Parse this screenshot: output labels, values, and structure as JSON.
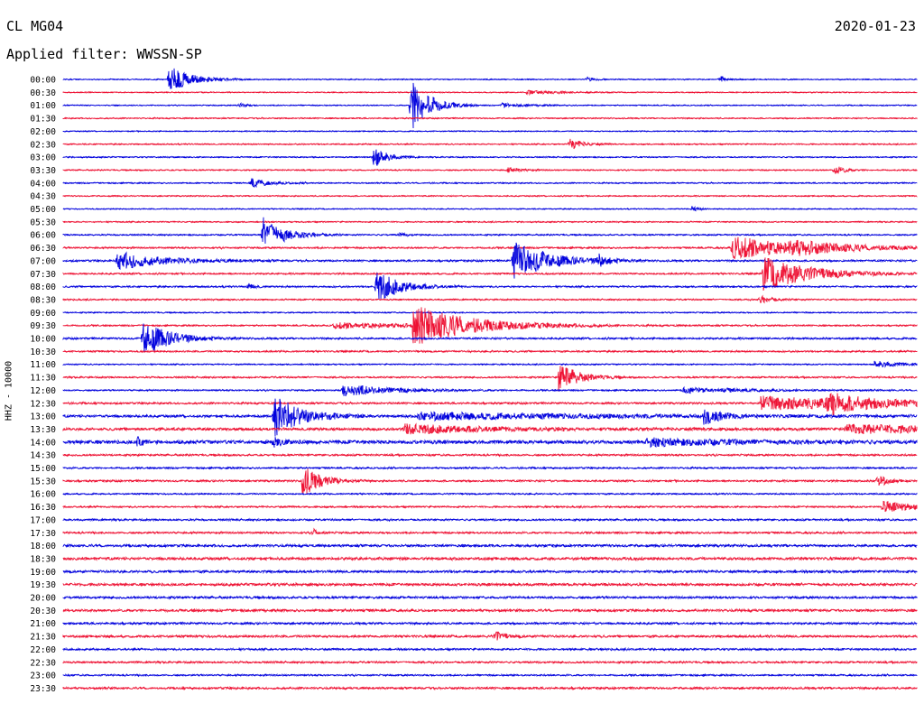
{
  "header": {
    "station": "CL MG04",
    "date": "2020-01-23",
    "filter_label": "Applied filter: WWSSN-SP"
  },
  "colors": {
    "even_row": "#0000dd",
    "odd_row": "#ee1133",
    "text": "#000000"
  },
  "chart_data": {
    "type": "line",
    "title": "CL MG04",
    "subtitle": "Applied filter: WWSSN-SP",
    "ylabel": "HHZ - 10000",
    "xlabel": "",
    "grid": false,
    "row_labels": [
      "00:00",
      "00:30",
      "01:00",
      "01:30",
      "02:00",
      "02:30",
      "03:00",
      "03:30",
      "04:00",
      "04:30",
      "05:00",
      "05:30",
      "06:00",
      "06:30",
      "07:00",
      "07:30",
      "08:00",
      "08:30",
      "09:00",
      "09:30",
      "10:00",
      "10:30",
      "11:00",
      "11:30",
      "12:00",
      "12:30",
      "13:00",
      "13:30",
      "14:00",
      "14:30",
      "15:00",
      "15:30",
      "16:00",
      "16:30",
      "17:00",
      "17:30",
      "18:00",
      "18:30",
      "19:00",
      "19:30",
      "20:00",
      "20:30",
      "21:00",
      "21:30",
      "22:00",
      "22:30",
      "23:00",
      "23:30"
    ],
    "row_colors": [
      "even_row",
      "odd_row"
    ],
    "row_minutes": 30,
    "noise": [
      0.5,
      0.5,
      0.5,
      0.6,
      0.5,
      0.6,
      0.6,
      0.6,
      0.6,
      0.6,
      0.5,
      0.6,
      0.7,
      0.8,
      0.9,
      0.8,
      0.8,
      0.7,
      0.6,
      0.7,
      0.9,
      0.8,
      0.6,
      0.8,
      0.7,
      0.9,
      1.3,
      1.4,
      1.8,
      0.9,
      0.8,
      0.9,
      0.7,
      0.8,
      0.9,
      0.9,
      1.2,
      1.4,
      1.2,
      1.3,
      1.1,
      1.2,
      1.0,
      1.1,
      0.9,
      0.9,
      0.8,
      1.0
    ],
    "events": [
      {
        "row": 0,
        "t": 3.7,
        "amp": 16,
        "dur": 0.7
      },
      {
        "row": 0,
        "t": 18.4,
        "amp": 3,
        "dur": 0.2
      },
      {
        "row": 0,
        "t": 23.1,
        "amp": 4,
        "dur": 0.2
      },
      {
        "row": 1,
        "t": 16.3,
        "amp": 2,
        "dur": 1.0
      },
      {
        "row": 2,
        "t": 12.2,
        "amp": 32,
        "dur": 0.6
      },
      {
        "row": 2,
        "t": 15.4,
        "amp": 2,
        "dur": 0.8
      },
      {
        "row": 2,
        "t": 6.2,
        "amp": 3,
        "dur": 0.2
      },
      {
        "row": 5,
        "t": 17.8,
        "amp": 7,
        "dur": 0.4
      },
      {
        "row": 6,
        "t": 10.9,
        "amp": 14,
        "dur": 0.4
      },
      {
        "row": 7,
        "t": 15.6,
        "amp": 3,
        "dur": 0.4
      },
      {
        "row": 7,
        "t": 27.1,
        "amp": 6,
        "dur": 0.3
      },
      {
        "row": 8,
        "t": 6.6,
        "amp": 5,
        "dur": 0.6
      },
      {
        "row": 10,
        "t": 22.1,
        "amp": 3,
        "dur": 0.2
      },
      {
        "row": 12,
        "t": 7.0,
        "amp": 20,
        "dur": 0.7
      },
      {
        "row": 12,
        "t": 11.8,
        "amp": 3,
        "dur": 0.2
      },
      {
        "row": 13,
        "t": 23.5,
        "amp": 13,
        "dur": 2.2
      },
      {
        "row": 13,
        "t": 25.5,
        "amp": 5,
        "dur": 1.8
      },
      {
        "row": 14,
        "t": 1.9,
        "amp": 10,
        "dur": 1.5
      },
      {
        "row": 14,
        "t": 15.8,
        "amp": 22,
        "dur": 1.2
      },
      {
        "row": 14,
        "t": 18.8,
        "amp": 7,
        "dur": 0.3
      },
      {
        "row": 15,
        "t": 24.6,
        "amp": 19,
        "dur": 1.6
      },
      {
        "row": 16,
        "t": 11.0,
        "amp": 18,
        "dur": 0.8
      },
      {
        "row": 16,
        "t": 6.5,
        "amp": 4,
        "dur": 0.2
      },
      {
        "row": 17,
        "t": 24.5,
        "amp": 4,
        "dur": 0.4
      },
      {
        "row": 19,
        "t": 12.3,
        "amp": 22,
        "dur": 1.8
      },
      {
        "row": 19,
        "t": 9.5,
        "amp": 3,
        "dur": 4.0
      },
      {
        "row": 20,
        "t": 2.8,
        "amp": 20,
        "dur": 0.9
      },
      {
        "row": 22,
        "t": 28.5,
        "amp": 4,
        "dur": 0.8
      },
      {
        "row": 23,
        "t": 17.4,
        "amp": 18,
        "dur": 0.6
      },
      {
        "row": 24,
        "t": 9.8,
        "amp": 7,
        "dur": 1.6
      },
      {
        "row": 24,
        "t": 21.8,
        "amp": 3,
        "dur": 2.0
      },
      {
        "row": 25,
        "t": 24.5,
        "amp": 8,
        "dur": 5.0
      },
      {
        "row": 25,
        "t": 26.8,
        "amp": 10,
        "dur": 1.0
      },
      {
        "row": 26,
        "t": 7.4,
        "amp": 24,
        "dur": 0.9
      },
      {
        "row": 26,
        "t": 22.5,
        "amp": 10,
        "dur": 0.5
      },
      {
        "row": 26,
        "t": 12.5,
        "amp": 4,
        "dur": 6.0
      },
      {
        "row": 27,
        "t": 12.0,
        "amp": 5,
        "dur": 3.0
      },
      {
        "row": 27,
        "t": 27.5,
        "amp": 5,
        "dur": 4.0
      },
      {
        "row": 28,
        "t": 7.4,
        "amp": 5,
        "dur": 0.4
      },
      {
        "row": 28,
        "t": 2.6,
        "amp": 6,
        "dur": 0.2
      },
      {
        "row": 28,
        "t": 20.5,
        "amp": 4,
        "dur": 3.0
      },
      {
        "row": 31,
        "t": 8.4,
        "amp": 18,
        "dur": 0.6
      },
      {
        "row": 31,
        "t": 28.6,
        "amp": 8,
        "dur": 0.3
      },
      {
        "row": 33,
        "t": 28.8,
        "amp": 6,
        "dur": 1.2
      },
      {
        "row": 35,
        "t": 8.8,
        "amp": 4,
        "dur": 0.2
      },
      {
        "row": 43,
        "t": 15.2,
        "amp": 6,
        "dur": 0.3
      }
    ]
  }
}
